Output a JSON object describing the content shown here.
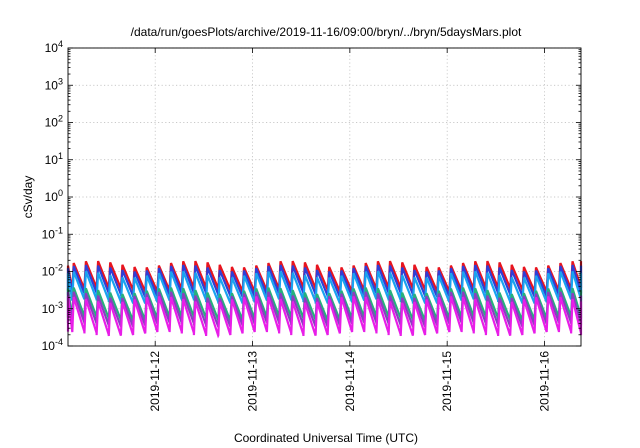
{
  "chart_data": {
    "type": "line",
    "title": "/data/run/goesPlots/archive/2019-11-16/09:00/bryn/../bryn/5daysMars.plot",
    "xlabel": "Coordinated Universal Time (UTC)",
    "ylabel": "cSv/day",
    "x_range": [
      "2019-11-11T02:30",
      "2019-11-16T09:00"
    ],
    "x_ticks": [
      "2019-11-12",
      "2019-11-13",
      "2019-11-14",
      "2019-11-15",
      "2019-11-16"
    ],
    "y_scale": "log",
    "ylim": [
      0.0001,
      10000
    ],
    "y_ticks": [
      {
        "base": "10",
        "exp": "4"
      },
      {
        "base": "10",
        "exp": "3"
      },
      {
        "base": "10",
        "exp": "2"
      },
      {
        "base": "10",
        "exp": "1"
      },
      {
        "base": "10",
        "exp": "0"
      },
      {
        "base": "10",
        "exp": "-1"
      },
      {
        "base": "10",
        "exp": "-2"
      },
      {
        "base": "10",
        "exp": "-3"
      },
      {
        "base": "10",
        "exp": "-4"
      }
    ],
    "grid": true,
    "sawtooth_period_hours": 3,
    "series": [
      {
        "color": "#e8141e",
        "max": 0.016,
        "min": 0.0033
      },
      {
        "color": "#2f3ed6",
        "max": 0.0125,
        "min": 0.0024
      },
      {
        "color": "#19a3f0",
        "max": 0.0085,
        "min": 0.0016
      },
      {
        "color": "#27b07c",
        "max": 0.0031,
        "min": 0.00055
      },
      {
        "color": "#8a3ec0",
        "max": 0.0024,
        "min": 0.00038
      },
      {
        "color": "#e81ee8",
        "max": 0.0018,
        "min": 0.00022
      }
    ]
  }
}
